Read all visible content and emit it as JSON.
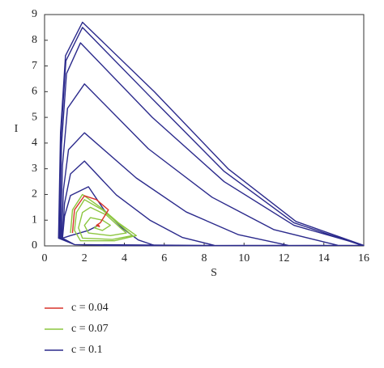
{
  "chart_data": {
    "type": "line",
    "x_label": "S",
    "y_label": "I",
    "xlim": [
      0,
      16
    ],
    "ylim": [
      0,
      9
    ],
    "xticks": [
      0,
      2,
      4,
      6,
      8,
      10,
      12,
      14,
      16
    ],
    "yticks": [
      0,
      1,
      2,
      3,
      4,
      5,
      6,
      7,
      8,
      9
    ],
    "grid": false,
    "series": [
      {
        "name": "c = 0.1",
        "color": "#2b2a8c",
        "x": [
          2.7,
          2.2,
          1.3,
          0.9,
          1.0,
          1.3,
          2.2,
          3.0,
          3.9,
          4.7,
          5.5,
          3.3,
          1.5,
          0.9,
          1.0,
          1.3,
          2.0,
          3.6,
          5.3,
          6.9,
          8.5,
          5.1,
          1.5,
          0.85,
          0.95,
          1.2,
          2.0,
          4.6,
          7.1,
          9.7,
          12.2,
          7.3,
          1.5,
          0.8,
          0.9,
          1.15,
          2.0,
          5.2,
          8.4,
          11.5,
          14.7,
          8.8,
          1.5,
          0.75,
          0.85,
          1.1,
          1.8,
          5.4,
          9.0,
          12.5,
          16,
          9.6,
          1.5,
          0.7,
          0.8,
          1.05,
          1.9,
          5.5,
          9.2,
          12.6,
          16,
          9.6,
          1.5,
          0.72,
          0.82,
          1.07,
          1.9,
          5.3,
          9.0,
          12.5,
          15.9,
          9.5,
          1.5,
          0.7
        ],
        "values": [
          0.8,
          0.6,
          0.4,
          0.3,
          1.15,
          1.96,
          2.3,
          1.38,
          0.69,
          0.23,
          0.02,
          0.01,
          0.05,
          0.3,
          1.65,
          2.8,
          3.3,
          1.98,
          0.99,
          0.33,
          0.02,
          0.01,
          0.05,
          0.3,
          2.2,
          3.74,
          4.4,
          2.64,
          1.32,
          0.44,
          0.02,
          0.01,
          0.05,
          0.3,
          3.15,
          5.35,
          6.3,
          3.78,
          1.89,
          0.63,
          0.02,
          0.01,
          0.05,
          0.3,
          3.95,
          6.7,
          7.9,
          5.0,
          2.5,
          0.8,
          0.02,
          0.01,
          0.05,
          0.3,
          4.4,
          7.4,
          8.7,
          6.0,
          3.0,
          0.95,
          0.02,
          0.01,
          0.05,
          0.3,
          4.3,
          7.2,
          8.5,
          5.8,
          2.9,
          0.9,
          0.02,
          0.01,
          0.05,
          0.3
        ]
      },
      {
        "name": "c = 0.07",
        "color": "#8cc63f",
        "x": [
          1.3,
          1.4,
          1.9,
          2.8,
          3.7,
          4.6,
          3.5,
          1.8,
          1.5,
          1.6,
          2.0,
          2.9,
          3.8,
          4.4,
          3.4,
          1.9,
          1.7,
          1.9,
          2.3,
          3.1,
          3.8,
          4.1,
          3.3,
          2.2,
          2.0,
          2.3,
          2.9,
          3.3,
          2.9,
          2.5,
          2.7
        ],
        "values": [
          0.5,
          1.4,
          2.0,
          1.5,
          0.9,
          0.4,
          0.2,
          0.2,
          0.6,
          1.3,
          1.8,
          1.4,
          0.8,
          0.4,
          0.25,
          0.3,
          0.7,
          1.3,
          1.5,
          1.2,
          0.7,
          0.5,
          0.4,
          0.5,
          0.8,
          1.1,
          1.0,
          0.8,
          0.6,
          0.7,
          0.8
        ]
      },
      {
        "name": "c = 0.04",
        "color": "#d9322a",
        "x": [
          1.4,
          1.5,
          2.0,
          2.6,
          3.2,
          2.8,
          2.6,
          2.75,
          2.7
        ],
        "values": [
          0.5,
          1.4,
          1.95,
          1.8,
          1.4,
          0.9,
          0.8,
          0.75,
          0.82
        ]
      }
    ]
  }
}
